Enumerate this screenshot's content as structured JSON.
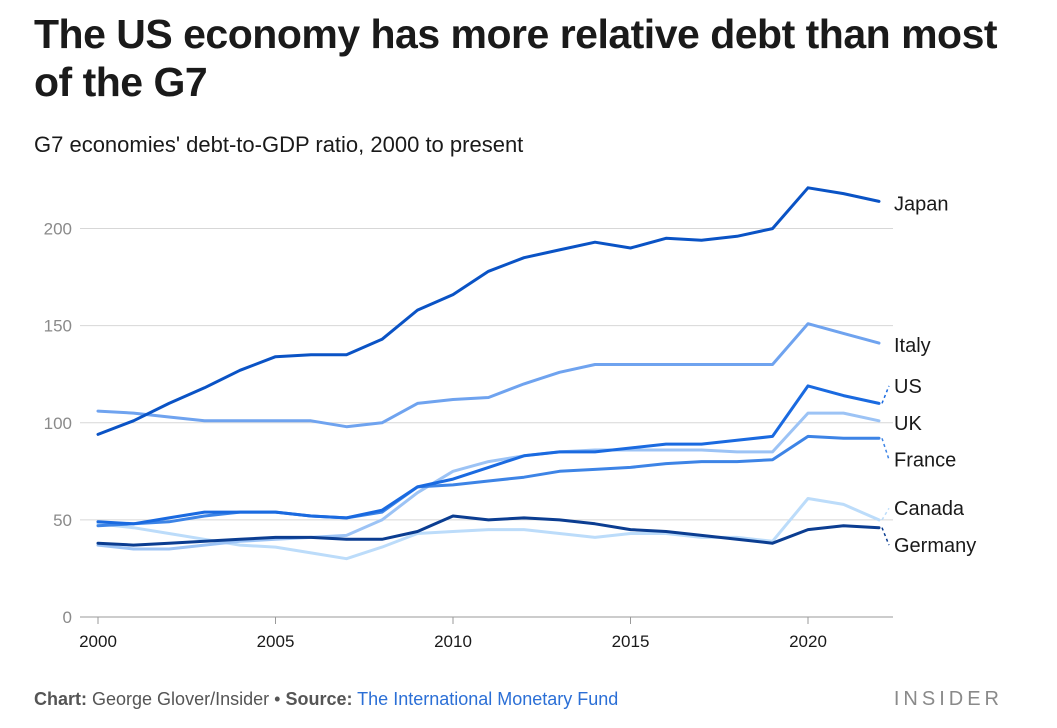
{
  "header": {
    "title": "The US economy has more relative debt than most of the G7",
    "subtitle": "G7 economies' debt-to-GDP ratio, 2000 to present"
  },
  "footer": {
    "chart_label": "Chart:",
    "chart_author": "George Glover/Insider",
    "bullet": "•",
    "source_label": "Source:",
    "source_name": "The International Monetary Fund",
    "brand": "INSIDER"
  },
  "chart_data": {
    "type": "line",
    "title": "The US economy has more relative debt than most of the G7",
    "subtitle": "G7 economies' debt-to-GDP ratio, 2000 to present",
    "xlabel": "",
    "ylabel": "",
    "xlim": [
      2000,
      2022
    ],
    "ylim": [
      0,
      225
    ],
    "x_ticks": [
      2000,
      2005,
      2010,
      2015,
      2020
    ],
    "y_ticks": [
      0,
      50,
      100,
      150,
      200
    ],
    "grid": "horizontal",
    "legend": "direct labels at line ends (right)",
    "x": [
      2000,
      2001,
      2002,
      2003,
      2004,
      2005,
      2006,
      2007,
      2008,
      2009,
      2010,
      2011,
      2012,
      2013,
      2014,
      2015,
      2016,
      2017,
      2018,
      2019,
      2020,
      2021,
      2022
    ],
    "series": [
      {
        "name": "Japan",
        "color": "#0a53c5",
        "label_y": 213,
        "values": [
          94,
          101,
          110,
          118,
          127,
          134,
          135,
          135,
          143,
          158,
          166,
          178,
          185,
          189,
          193,
          190,
          195,
          194,
          196,
          200,
          221,
          218,
          214
        ]
      },
      {
        "name": "Italy",
        "color": "#6fa3ef",
        "label_y": 140,
        "values": [
          106,
          105,
          103,
          101,
          101,
          101,
          101,
          98,
          100,
          110,
          112,
          113,
          120,
          126,
          130,
          130,
          130,
          130,
          130,
          130,
          151,
          146,
          141
        ]
      },
      {
        "name": "US",
        "color": "#1a6ae0",
        "label_y": 119,
        "values": [
          49,
          48,
          51,
          54,
          54,
          54,
          52,
          51,
          55,
          67,
          71,
          77,
          83,
          85,
          85,
          87,
          89,
          89,
          91,
          93,
          119,
          114,
          110
        ]
      },
      {
        "name": "UK",
        "color": "#9cc3f5",
        "label_y": 100,
        "values": [
          37,
          35,
          35,
          37,
          39,
          40,
          41,
          42,
          50,
          64,
          75,
          80,
          83,
          85,
          86,
          86,
          86,
          86,
          85,
          85,
          105,
          105,
          101
        ]
      },
      {
        "name": "France",
        "color": "#3d84e6",
        "label_y": 81,
        "values": [
          47,
          48,
          49,
          52,
          54,
          54,
          52,
          51,
          54,
          67,
          68,
          70,
          72,
          75,
          76,
          77,
          79,
          80,
          80,
          81,
          93,
          92,
          92
        ]
      },
      {
        "name": "Canada",
        "color": "#bcdcfa",
        "label_y": 56,
        "values": [
          48,
          46,
          43,
          40,
          37,
          36,
          33,
          30,
          36,
          43,
          44,
          45,
          45,
          43,
          41,
          43,
          43,
          41,
          41,
          39,
          61,
          58,
          50
        ]
      },
      {
        "name": "Germany",
        "color": "#0b3d91",
        "label_y": 37,
        "values": [
          38,
          37,
          38,
          39,
          40,
          41,
          41,
          40,
          40,
          44,
          52,
          50,
          51,
          50,
          48,
          45,
          44,
          42,
          40,
          38,
          45,
          47,
          46
        ]
      }
    ]
  }
}
